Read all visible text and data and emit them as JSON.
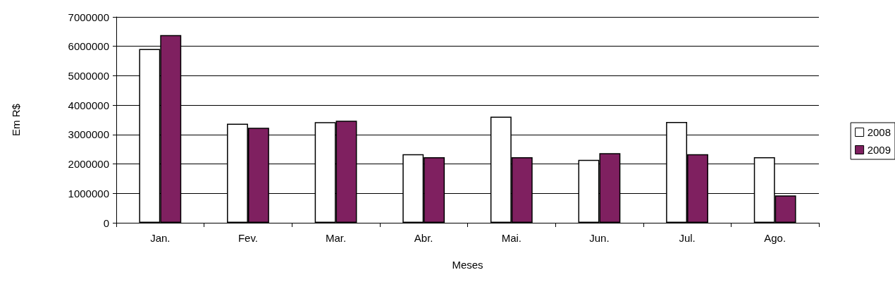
{
  "chart_data": {
    "type": "bar",
    "xlabel": "Meses",
    "ylabel": "Em R$",
    "categories": [
      "Jan.",
      "Fev.",
      "Mar.",
      "Abr.",
      "Mai.",
      "Jun.",
      "Jul.",
      "Ago."
    ],
    "series": [
      {
        "name": "2008",
        "color": "#ffffff",
        "values": [
          5910000,
          3370000,
          3420000,
          2330000,
          3610000,
          2140000,
          3430000,
          2230000
        ]
      },
      {
        "name": "2009",
        "color": "#7f2060",
        "values": [
          6380000,
          3230000,
          3470000,
          2230000,
          2230000,
          2370000,
          2330000,
          930000
        ]
      }
    ],
    "ylim": [
      0,
      7000000
    ],
    "yticks": [
      0,
      1000000,
      2000000,
      3000000,
      4000000,
      5000000,
      6000000,
      7000000
    ],
    "grid": "y",
    "legend": "right"
  }
}
